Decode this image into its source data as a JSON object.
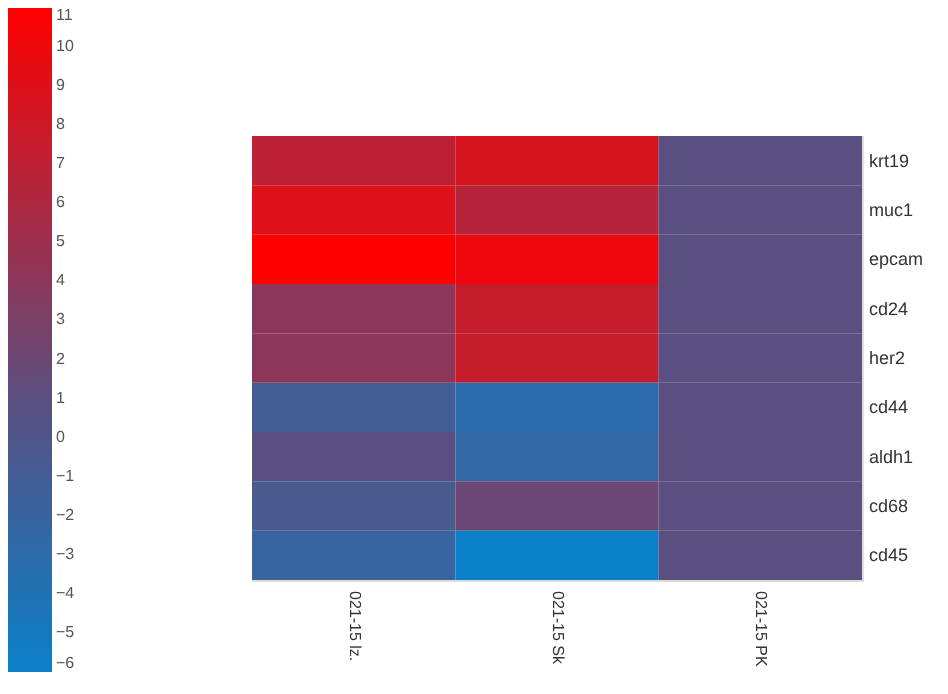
{
  "chart_data": {
    "type": "heatmap",
    "categories": [
      "021-15 lz.",
      "021-15 Sk",
      "021-15 PK"
    ],
    "y_categories": [
      "krt19",
      "muc1",
      "epcam",
      "cd24",
      "her2",
      "cd44",
      "aldh1",
      "cd68",
      "cd45"
    ],
    "cells": [
      [
        7,
        8.5,
        1
      ],
      [
        9,
        6.5,
        1
      ],
      [
        11,
        10,
        1
      ],
      [
        4,
        7.5,
        1
      ],
      [
        4,
        7.5,
        1
      ],
      [
        -1,
        -3,
        1
      ],
      [
        1,
        -2.5,
        1
      ],
      [
        -0.5,
        2,
        1
      ],
      [
        -2,
        -6,
        1
      ]
    ],
    "clim": [
      -6,
      11
    ],
    "cticks": [
      -6,
      -5,
      -4,
      -3,
      -2,
      -1,
      0,
      1,
      2,
      3,
      4,
      5,
      6,
      7,
      8,
      9,
      10,
      11
    ]
  }
}
